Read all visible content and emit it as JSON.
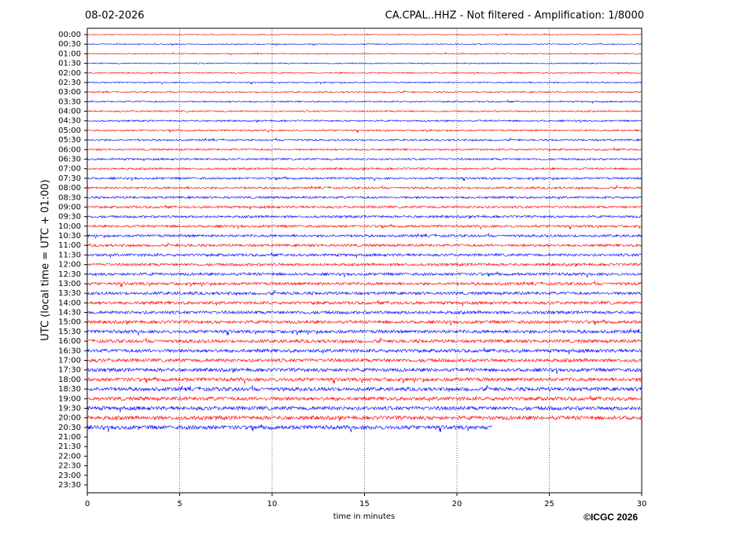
{
  "chart_data": {
    "type": "helicorder",
    "title_left": "08-02-2026",
    "title_right": "CA.CPAL..HHZ - Not filtered - Amplification: 1/8000",
    "ylabel": "UTC (local time = UTC + 01:00)",
    "xlabel": "time in minutes",
    "credit": "©ICGC 2026",
    "xlim": [
      0,
      30
    ],
    "xticks": [
      0,
      5,
      10,
      15,
      20,
      25,
      30
    ],
    "grid": true,
    "trace_colors": [
      "#ff0000",
      "#0000ff"
    ],
    "categories": [
      "00:00",
      "00:30",
      "01:00",
      "01:30",
      "02:00",
      "02:30",
      "03:00",
      "03:30",
      "04:00",
      "04:30",
      "05:00",
      "05:30",
      "06:00",
      "06:30",
      "07:00",
      "07:30",
      "08:00",
      "08:30",
      "09:00",
      "09:30",
      "10:00",
      "10:30",
      "11:00",
      "11:30",
      "12:00",
      "12:30",
      "13:00",
      "13:30",
      "14:00",
      "14:30",
      "15:00",
      "15:30",
      "16:00",
      "16:30",
      "17:00",
      "17:30",
      "18:00",
      "18:30",
      "19:00",
      "19:30",
      "20:00",
      "20:30",
      "21:00",
      "21:30",
      "22:00",
      "22:30",
      "23:00",
      "23:30"
    ],
    "trace_end": [
      30,
      30,
      30,
      30,
      30,
      30,
      30,
      30,
      30,
      30,
      30,
      30,
      30,
      30,
      30,
      30,
      30,
      30,
      30,
      30,
      30,
      30,
      30,
      30,
      30,
      30,
      30,
      30,
      30,
      30,
      30,
      30,
      30,
      30,
      30,
      30,
      30,
      30,
      30,
      30,
      30,
      21.9,
      null,
      null,
      null,
      null,
      null,
      null
    ]
  }
}
